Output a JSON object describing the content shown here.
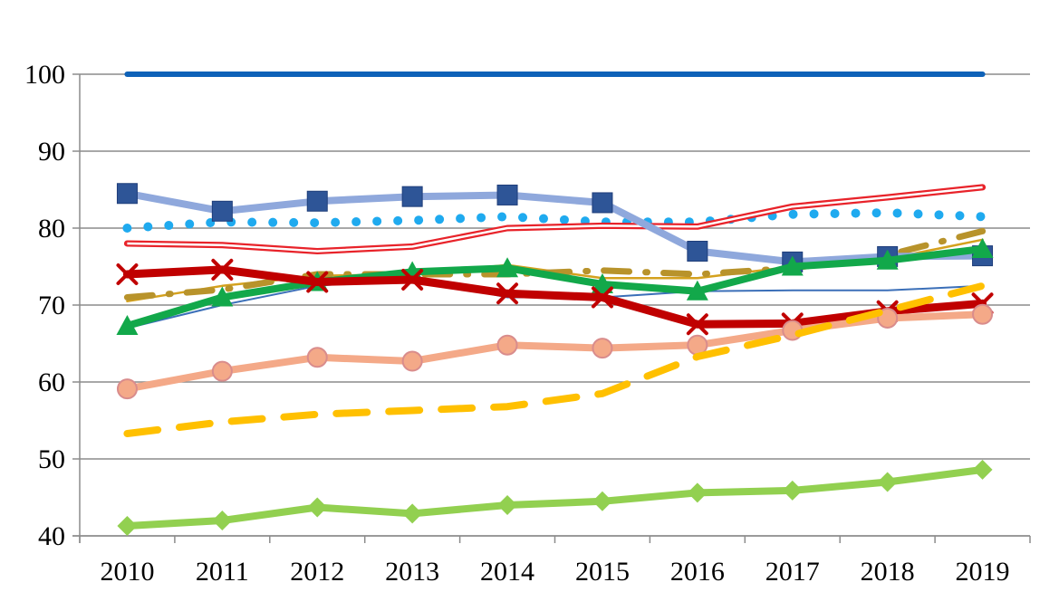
{
  "chart_data": {
    "type": "line",
    "title": "",
    "xlabel": "",
    "ylabel": "",
    "ylim": [
      40,
      100
    ],
    "yticks": [
      40,
      50,
      60,
      70,
      80,
      90,
      100
    ],
    "grid": true,
    "categories": [
      "2010",
      "2011",
      "2012",
      "2013",
      "2014",
      "2015",
      "2016",
      "2017",
      "2018",
      "2019"
    ],
    "series": [
      {
        "name": "series-100",
        "color": "#0E62B8",
        "style": "solid",
        "width": 6,
        "marker": "none",
        "values": [
          100,
          100,
          100,
          100,
          100,
          100,
          100,
          100,
          100,
          100
        ]
      },
      {
        "name": "series-dotted-blue",
        "color": "#1FAAEF",
        "style": "dotted",
        "width": 6,
        "marker": "none",
        "values": [
          80,
          80.8,
          80.7,
          81,
          81.5,
          80.8,
          80.8,
          81.8,
          82,
          81.5
        ]
      },
      {
        "name": "series-double-red",
        "color": "#E8232A",
        "style": "double",
        "width": 5,
        "marker": "none",
        "values": [
          78,
          77.8,
          77,
          77.6,
          80,
          80.3,
          80.2,
          82.8,
          84,
          85.3
        ]
      },
      {
        "name": "series-thin-blue",
        "color": "#3B6FB8",
        "style": "solid",
        "width": 2,
        "marker": "none",
        "values": [
          67,
          70,
          72.5,
          73.5,
          71,
          71,
          71.8,
          71.9,
          71.9,
          72.5
        ]
      },
      {
        "name": "series-thin-gold",
        "color": "#D4A11E",
        "style": "solid",
        "width": 2.5,
        "marker": "none",
        "values": [
          70.5,
          72.5,
          73.8,
          74,
          75.2,
          73.5,
          73.5,
          75,
          76,
          78.5
        ]
      },
      {
        "name": "series-gold-dashdot",
        "color": "#B8932B",
        "style": "dashdot",
        "width": 7,
        "marker": "none",
        "values": [
          71,
          72,
          74,
          74,
          74,
          74.5,
          74,
          74.8,
          76.5,
          79.6
        ]
      },
      {
        "name": "series-light-blue-squares",
        "color": "#8FA8DC",
        "style": "solid",
        "width": 8,
        "marker": "square",
        "markerColor": "#2E5597",
        "values": [
          84.5,
          82.2,
          83.5,
          84.1,
          84.3,
          83.3,
          77,
          75.6,
          76.3,
          76.4
        ]
      },
      {
        "name": "series-green-triangles",
        "color": "#12A84A",
        "style": "solid",
        "width": 8,
        "marker": "triangle",
        "markerColor": "#12A84A",
        "values": [
          67.3,
          71,
          73,
          74.3,
          74.8,
          72.7,
          71.8,
          75,
          75.8,
          77.3
        ]
      },
      {
        "name": "series-darkred-x",
        "color": "#C00000",
        "style": "solid",
        "width": 9,
        "marker": "x",
        "markerColor": "#C00000",
        "values": [
          74,
          74.6,
          73,
          73.3,
          71.5,
          71,
          67.5,
          67.6,
          69.2,
          70.2
        ]
      },
      {
        "name": "series-salmon-circles",
        "color": "#F4A988",
        "style": "solid",
        "width": 8,
        "marker": "circle",
        "markerColor": "#F4A988",
        "values": [
          59.1,
          61.4,
          63.2,
          62.7,
          64.8,
          64.4,
          64.8,
          66.7,
          68.3,
          68.8
        ]
      },
      {
        "name": "series-yellow-dashed",
        "color": "#FFC000",
        "style": "dashed",
        "width": 8,
        "marker": "none",
        "values": [
          53.3,
          54.8,
          55.8,
          56.3,
          56.8,
          58.5,
          63.3,
          66.1,
          69.3,
          72.5
        ]
      },
      {
        "name": "series-lightgreen-diamonds",
        "color": "#92D050",
        "style": "solid",
        "width": 8,
        "marker": "diamond",
        "markerColor": "#92D050",
        "values": [
          41.3,
          42,
          43.7,
          42.9,
          44,
          44.5,
          45.6,
          45.9,
          47,
          48.6
        ]
      }
    ]
  }
}
